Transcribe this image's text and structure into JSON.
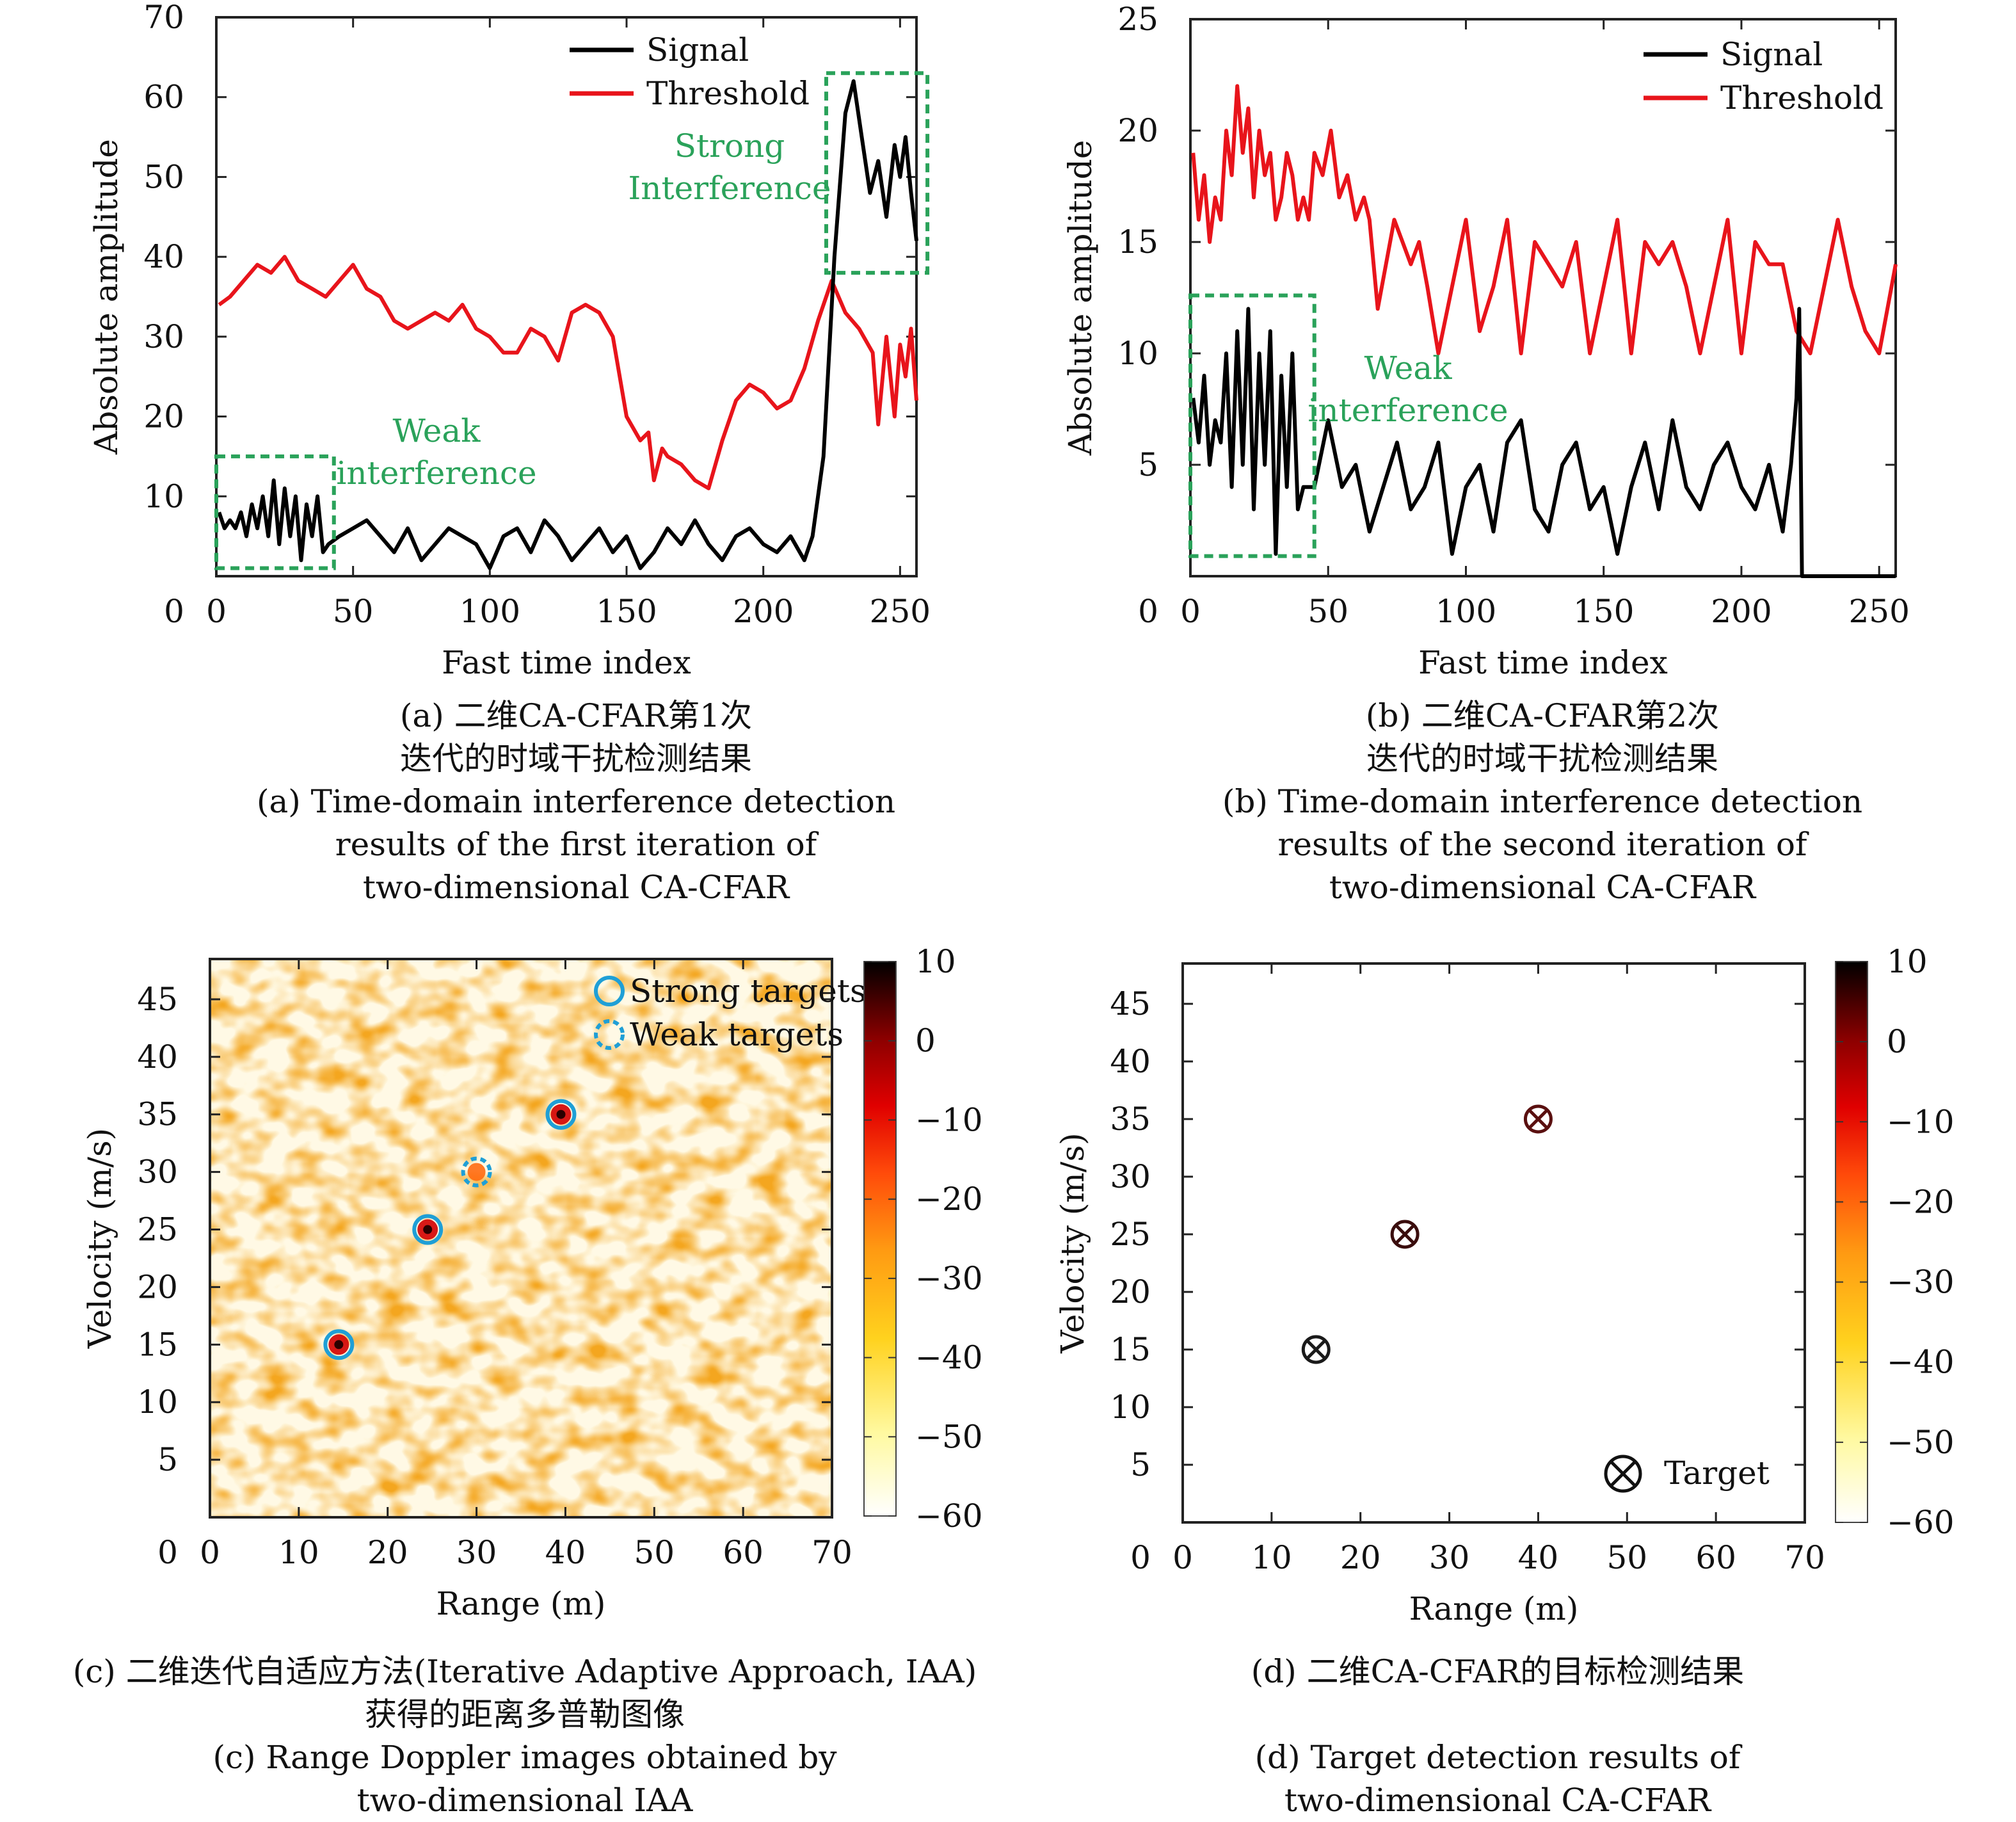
{
  "chart_data": [
    {
      "id": "a",
      "type": "line",
      "xlabel": "Fast time index",
      "ylabel": "Absolute amplitude",
      "xlim": [
        0,
        256
      ],
      "ylim": [
        0,
        70
      ],
      "xticks": [
        "0",
        "50",
        "100",
        "150",
        "200",
        "250"
      ],
      "yticks": [
        "10",
        "20",
        "30",
        "40",
        "50",
        "60",
        "70"
      ],
      "grid": false,
      "legend": "top-right",
      "series": [
        {
          "name": "Signal",
          "color": "#000000",
          "x": [
            1,
            3,
            5,
            7,
            9,
            11,
            13,
            15,
            17,
            19,
            21,
            23,
            25,
            27,
            29,
            31,
            33,
            35,
            37,
            39,
            41,
            45,
            50,
            55,
            60,
            65,
            70,
            75,
            80,
            85,
            90,
            95,
            100,
            105,
            110,
            115,
            120,
            125,
            130,
            135,
            140,
            145,
            150,
            155,
            160,
            165,
            170,
            175,
            180,
            185,
            190,
            195,
            200,
            205,
            210,
            215,
            218,
            222,
            226,
            230,
            233,
            236,
            239,
            242,
            245,
            248,
            250,
            252,
            254,
            256
          ],
          "y": [
            8,
            6,
            7,
            6,
            8,
            5,
            9,
            6,
            10,
            5,
            12,
            4,
            11,
            5,
            10,
            2,
            9,
            5,
            10,
            3,
            4,
            5,
            6,
            7,
            5,
            3,
            6,
            2,
            4,
            6,
            5,
            4,
            1,
            5,
            6,
            3,
            7,
            5,
            2,
            4,
            6,
            3,
            5,
            1,
            3,
            6,
            4,
            7,
            4,
            2,
            5,
            6,
            4,
            3,
            5,
            2,
            5,
            15,
            40,
            58,
            62,
            55,
            48,
            52,
            45,
            54,
            50,
            55,
            48,
            42
          ]
        },
        {
          "name": "Threshold",
          "color": "#e8141b",
          "x": [
            1,
            5,
            10,
            15,
            20,
            25,
            30,
            35,
            40,
            45,
            50,
            55,
            60,
            65,
            70,
            75,
            80,
            85,
            90,
            95,
            100,
            105,
            110,
            115,
            120,
            125,
            130,
            135,
            140,
            145,
            150,
            155,
            158,
            160,
            163,
            165,
            170,
            175,
            180,
            185,
            190,
            195,
            200,
            205,
            210,
            215,
            220,
            225,
            230,
            235,
            240,
            242,
            245,
            248,
            250,
            252,
            254,
            256
          ],
          "y": [
            34,
            35,
            37,
            39,
            38,
            40,
            37,
            36,
            35,
            37,
            39,
            36,
            35,
            32,
            31,
            32,
            33,
            32,
            34,
            31,
            30,
            28,
            28,
            31,
            30,
            27,
            33,
            34,
            33,
            30,
            20,
            17,
            18,
            12,
            16,
            15,
            14,
            12,
            11,
            17,
            22,
            24,
            23,
            21,
            22,
            26,
            32,
            37,
            33,
            31,
            28,
            19,
            30,
            20,
            29,
            25,
            31,
            22
          ]
        }
      ],
      "annotations": [
        {
          "label": "Weak interference",
          "line1": "Weak",
          "line2": "interference",
          "x0": 0,
          "x1": 43,
          "y0": 1,
          "y1": 15
        },
        {
          "label": "Strong Interference",
          "line1": "Strong",
          "line2": "Interference",
          "x0": 223,
          "x1": 260,
          "y0": 38,
          "y1": 63
        }
      ]
    },
    {
      "id": "b",
      "type": "line",
      "xlabel": "Fast time index",
      "ylabel": "Absolute amplitude",
      "xlim": [
        0,
        256
      ],
      "ylim": [
        0,
        25
      ],
      "xticks": [
        "0",
        "50",
        "100",
        "150",
        "200",
        "250"
      ],
      "yticks": [
        "5",
        "10",
        "15",
        "20",
        "25"
      ],
      "grid": false,
      "legend": "top-right",
      "series": [
        {
          "name": "Signal",
          "color": "#000000",
          "x": [
            1,
            3,
            5,
            7,
            9,
            11,
            13,
            15,
            17,
            19,
            21,
            23,
            25,
            27,
            29,
            31,
            33,
            35,
            37,
            39,
            41,
            45,
            50,
            55,
            60,
            65,
            70,
            75,
            80,
            85,
            90,
            95,
            100,
            105,
            110,
            115,
            120,
            125,
            130,
            135,
            140,
            145,
            150,
            155,
            160,
            165,
            170,
            175,
            180,
            185,
            190,
            195,
            200,
            205,
            210,
            215,
            218,
            220,
            221,
            222,
            225,
            230,
            240,
            250,
            256
          ],
          "y": [
            8,
            6,
            9,
            5,
            7,
            6,
            10,
            4,
            11,
            5,
            12,
            3,
            10,
            5,
            11,
            1,
            9,
            4,
            10,
            3,
            4,
            4,
            7,
            4,
            5,
            2,
            4,
            6,
            3,
            4,
            6,
            1,
            4,
            5,
            2,
            6,
            7,
            3,
            2,
            5,
            6,
            3,
            4,
            1,
            4,
            6,
            3,
            7,
            4,
            3,
            5,
            6,
            4,
            3,
            5,
            2,
            5,
            8,
            12,
            0,
            0,
            0,
            0,
            0,
            0
          ]
        },
        {
          "name": "Threshold",
          "color": "#e8141b",
          "x": [
            1,
            3,
            5,
            7,
            9,
            11,
            13,
            15,
            17,
            19,
            21,
            23,
            25,
            27,
            29,
            31,
            33,
            35,
            37,
            39,
            41,
            43,
            45,
            48,
            51,
            54,
            57,
            60,
            63,
            65,
            68,
            71,
            74,
            77,
            80,
            83,
            86,
            90,
            95,
            100,
            105,
            110,
            115,
            120,
            125,
            130,
            135,
            140,
            145,
            150,
            155,
            160,
            165,
            170,
            175,
            180,
            185,
            190,
            195,
            200,
            205,
            210,
            215,
            220,
            225,
            230,
            235,
            240,
            245,
            250,
            256
          ],
          "y": [
            19,
            16,
            18,
            15,
            17,
            16,
            20,
            18,
            22,
            19,
            21,
            17,
            20,
            18,
            19,
            16,
            17,
            19,
            18,
            16,
            17,
            16,
            19,
            18,
            20,
            17,
            18,
            16,
            17,
            16,
            12,
            14,
            16,
            15,
            14,
            15,
            13,
            10,
            13,
            16,
            11,
            13,
            16,
            10,
            15,
            14,
            13,
            15,
            10,
            13,
            16,
            10,
            15,
            14,
            15,
            13,
            10,
            13,
            16,
            10,
            15,
            14,
            14,
            11,
            10,
            13,
            16,
            13,
            11,
            10,
            14
          ]
        }
      ],
      "annotations": [
        {
          "label": "Weak interference",
          "line1": "Weak",
          "line2": "interference",
          "x0": 0,
          "x1": 45,
          "y0": 0.9,
          "y1": 12.6
        }
      ]
    },
    {
      "id": "c",
      "type": "heatmap",
      "xlabel": "Range (m)",
      "ylabel": "Velocity (m/s)",
      "xlim": [
        0,
        70
      ],
      "ylim": [
        0,
        48.5
      ],
      "xticks": [
        "0",
        "10",
        "20",
        "30",
        "40",
        "50",
        "60",
        "70"
      ],
      "yticks": [
        "5",
        "10",
        "15",
        "20",
        "25",
        "30",
        "35",
        "40",
        "45"
      ],
      "colorbar_ticks": [
        "10",
        "0",
        "−10",
        "−20",
        "−30",
        "−40",
        "−50",
        "−60"
      ],
      "colorbar_range": [
        -60,
        10
      ],
      "strong_targets": [
        {
          "x": 14.5,
          "y": 15
        },
        {
          "x": 24.5,
          "y": 25
        },
        {
          "x": 39.5,
          "y": 35
        }
      ],
      "weak_targets": [
        {
          "x": 30,
          "y": 30
        }
      ],
      "legend": [
        {
          "label": "Strong targets",
          "style": "solid-circle"
        },
        {
          "label": "Weak targets",
          "style": "dashed-circle"
        }
      ],
      "legend_placement": "top-right"
    },
    {
      "id": "d",
      "type": "scatter",
      "xlabel": "Range (m)",
      "ylabel": "Velocity (m/s)",
      "xlim": [
        0,
        70
      ],
      "ylim": [
        0,
        48.5
      ],
      "xticks": [
        "0",
        "10",
        "20",
        "30",
        "40",
        "50",
        "60",
        "70"
      ],
      "yticks": [
        "5",
        "10",
        "15",
        "20",
        "25",
        "30",
        "35",
        "40",
        "45"
      ],
      "colorbar_ticks": [
        "10",
        "0",
        "−10",
        "−20",
        "−30",
        "−40",
        "−50",
        "−60"
      ],
      "colorbar_range": [
        -60,
        10
      ],
      "points": [
        {
          "x": 15,
          "y": 15,
          "color": "#1a1a1a"
        },
        {
          "x": 25,
          "y": 25,
          "color": "#3a0d0d"
        },
        {
          "x": 40,
          "y": 35,
          "color": "#5a1010"
        }
      ],
      "legend": [
        {
          "label": "Target",
          "style": "circle-x"
        }
      ],
      "legend_placement": "bottom-right"
    }
  ],
  "captions": {
    "a": [
      "(a) 二维CA-CFAR第1次",
      "迭代的时域干扰检测结果",
      "(a) Time-domain interference detection",
      "results of the first iteration of",
      "two-dimensional CA-CFAR"
    ],
    "b": [
      "(b) 二维CA-CFAR第2次",
      "迭代的时域干扰检测结果",
      "(b) Time-domain interference detection",
      "results of the second iteration of",
      "two-dimensional CA-CFAR"
    ],
    "c": [
      "(c) 二维迭代自适应方法(Iterative Adaptive Approach, IAA)",
      "获得的距离多普勒图像",
      "(c) Range Doppler images obtained by",
      "two-dimensional IAA"
    ],
    "d": [
      "(d) 二维CA-CFAR的目标检测结果",
      "",
      "(d) Target detection results of",
      "two-dimensional CA-CFAR"
    ]
  },
  "colors": {
    "signal": "#000000",
    "threshold": "#e8141b",
    "annotation": "#2aa25a",
    "target_circle": "#1f9fd6"
  }
}
